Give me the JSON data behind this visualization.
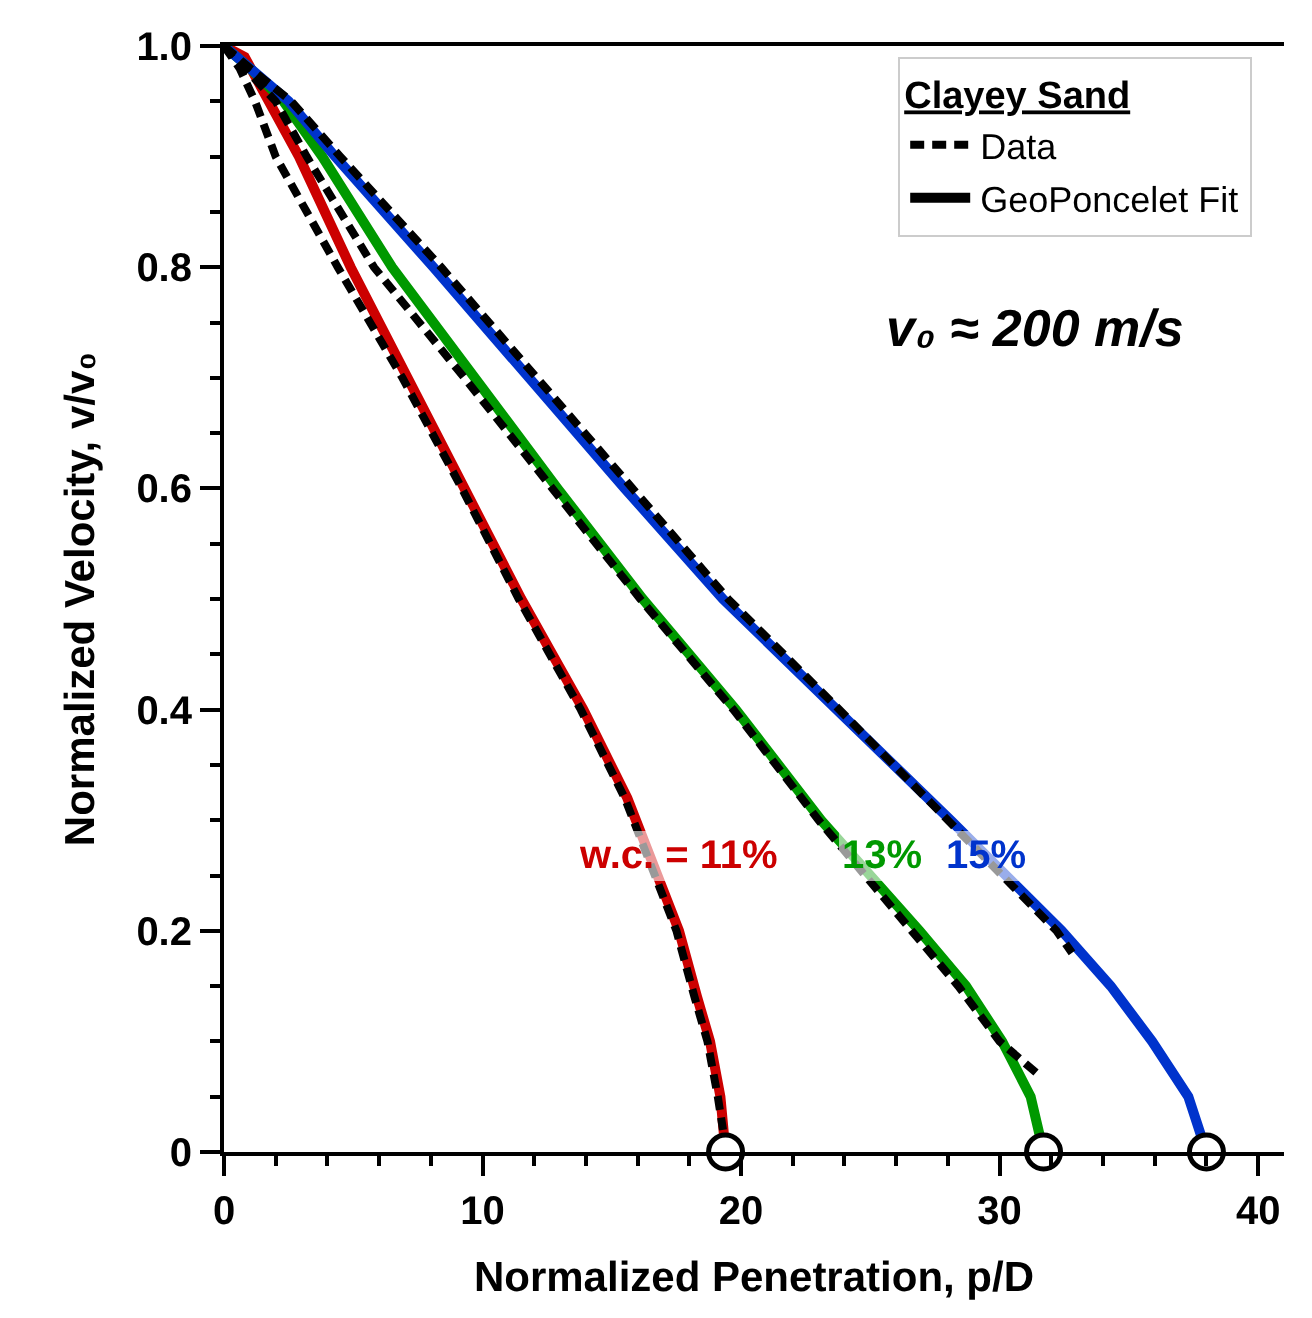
{
  "chart_data": {
    "type": "line",
    "xlabel": "Normalized Penetration, $_{}$p/D",
    "ylabel": "Normalized Velocity, v/v₀",
    "legend_title": "Clayey Sand",
    "legend": "top right",
    "annotations": [
      "v₀ ≈ 200 m/s"
    ],
    "xlim": [
      0,
      41
    ],
    "xticks": [
      0,
      10,
      20,
      30,
      40
    ],
    "ylim": [
      0,
      1
    ],
    "yticks": [
      0,
      {
        "value": 0.2,
        "label": "0.2"
      },
      {
        "value": 0.4,
        "label": "0.4"
      },
      {
        "value": 0.6,
        "label": "0.6"
      },
      {
        "value": 0.8,
        "label": "0.8"
      },
      {
        "value": 1,
        "label": "1.0"
      }
    ],
    "series": [
      {
        "name": "w.c. = 11%",
        "color": "#cc0000",
        "x": [
          0,
          0.8,
          1.5,
          2.9,
          4.9,
          7.1,
          9.3,
          11.5,
          13.9,
          15.6,
          17.6,
          18.3,
          18.8,
          19.2,
          19.4
        ],
        "values": [
          1,
          0.99,
          0.96,
          0.9,
          0.8,
          0.7,
          0.6,
          0.5,
          0.4,
          0.32,
          0.2,
          0.14,
          0.1,
          0.05,
          0
        ]
      },
      {
        "name": "13%",
        "color": "#009900",
        "x": [
          0,
          1,
          2.3,
          3.8,
          6.5,
          9.7,
          12.9,
          16.2,
          19.8,
          23.1,
          26.9,
          28.7,
          30.1,
          31.2,
          31.7
        ],
        "values": [
          1,
          0.98,
          0.95,
          0.9,
          0.8,
          0.7,
          0.6,
          0.5,
          0.4,
          0.3,
          0.2,
          0.15,
          0.1,
          0.05,
          0
        ]
      },
      {
        "name": "15%",
        "color": "#0033cc",
        "x": [
          0,
          1,
          2.5,
          4.3,
          8.1,
          11.8,
          15.5,
          19.3,
          23.7,
          28.1,
          32.4,
          34.3,
          35.9,
          37.3,
          38.0
        ],
        "values": [
          1,
          0.98,
          0.95,
          0.9,
          0.8,
          0.7,
          0.6,
          0.5,
          0.4,
          0.3,
          0.2,
          0.15,
          0.1,
          0.05,
          0
        ]
      },
      {
        "name": "Data",
        "color": "#000000",
        "line_style": "dashed",
        "x": [
          0,
          0.6,
          1.2,
          2.0,
          4.4,
          6.9,
          9.2,
          11.4,
          13.8,
          15.5,
          17.5,
          18.2,
          18.7,
          19.1,
          19.3
        ],
        "values": [
          1,
          0.98,
          0.95,
          0.9,
          0.8,
          0.7,
          0.6,
          0.5,
          0.4,
          0.32,
          0.2,
          0.14,
          0.1,
          0.05,
          0.02
        ]
      },
      {
        "color": "#000000",
        "line_style": "dashed",
        "x": [
          0,
          0.8,
          2.0,
          3.2,
          5.8,
          9.3,
          12.7,
          16.1,
          19.7,
          23.0,
          26.6,
          28.4,
          30.0,
          31.5
        ],
        "values": [
          1,
          0.98,
          0.95,
          0.9,
          0.8,
          0.7,
          0.6,
          0.5,
          0.4,
          0.3,
          0.2,
          0.15,
          0.1,
          0.07
        ]
      },
      {
        "color": "#000000",
        "line_style": "dashed",
        "x": [
          0,
          1,
          2.6,
          4.5,
          8.4,
          12.1,
          15.8,
          19.5,
          23.8,
          28.0,
          32.2,
          32.8
        ],
        "values": [
          1,
          0.98,
          0.95,
          0.9,
          0.8,
          0.7,
          0.6,
          0.5,
          0.4,
          0.3,
          0.2,
          0.18
        ]
      },
      {
        "name": "GeoPoncelet Fit",
        "color": "#000000"
      },
      {
        "type": "scatter",
        "color": "#000000",
        "marker": "circle",
        "x": [
          19.4,
          31.7,
          38.0
        ],
        "values": [
          0,
          0,
          0
        ]
      }
    ]
  }
}
